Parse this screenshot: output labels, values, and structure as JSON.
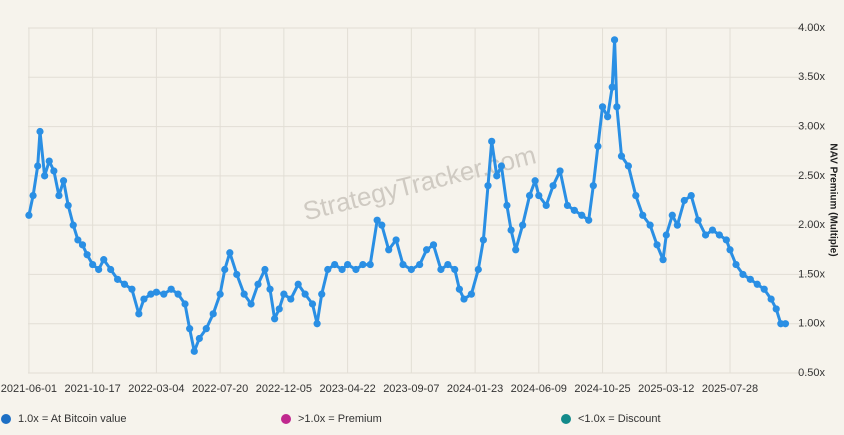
{
  "chart_data": {
    "type": "line",
    "watermark": "StrategyTracker.com",
    "y_axis_label": "NAV Premium (Multiple)",
    "x": [
      "2021-06-01",
      "2021-06-10",
      "2021-06-20",
      "2021-06-25",
      "2021-07-05",
      "2021-07-15",
      "2021-07-25",
      "2021-08-05",
      "2021-08-15",
      "2021-08-25",
      "2021-09-05",
      "2021-09-15",
      "2021-09-25",
      "2021-10-05",
      "2021-10-17",
      "2021-10-30",
      "2021-11-10",
      "2021-11-25",
      "2021-12-10",
      "2021-12-25",
      "2022-01-10",
      "2022-01-25",
      "2022-02-05",
      "2022-02-20",
      "2022-03-04",
      "2022-03-20",
      "2022-04-05",
      "2022-04-20",
      "2022-05-05",
      "2022-05-15",
      "2022-05-25",
      "2022-06-05",
      "2022-06-20",
      "2022-07-05",
      "2022-07-20",
      "2022-07-30",
      "2022-08-10",
      "2022-08-25",
      "2022-09-10",
      "2022-09-25",
      "2022-10-10",
      "2022-10-25",
      "2022-11-05",
      "2022-11-15",
      "2022-11-25",
      "2022-12-05",
      "2022-12-20",
      "2023-01-05",
      "2023-01-20",
      "2023-02-05",
      "2023-02-15",
      "2023-02-25",
      "2023-03-10",
      "2023-03-25",
      "2023-04-10",
      "2023-04-22",
      "2023-05-10",
      "2023-05-25",
      "2023-06-10",
      "2023-06-25",
      "2023-07-05",
      "2023-07-20",
      "2023-08-05",
      "2023-08-20",
      "2023-09-07",
      "2023-09-25",
      "2023-10-10",
      "2023-10-25",
      "2023-11-10",
      "2023-11-25",
      "2023-12-10",
      "2023-12-20",
      "2023-12-30",
      "2024-01-15",
      "2024-01-30",
      "2024-02-10",
      "2024-02-20",
      "2024-02-28",
      "2024-03-10",
      "2024-03-20",
      "2024-04-01",
      "2024-04-10",
      "2024-04-20",
      "2024-05-05",
      "2024-05-20",
      "2024-06-01",
      "2024-06-09",
      "2024-06-25",
      "2024-07-10",
      "2024-07-25",
      "2024-08-10",
      "2024-08-25",
      "2024-09-10",
      "2024-09-25",
      "2024-10-05",
      "2024-10-15",
      "2024-10-25",
      "2024-11-05",
      "2024-11-15",
      "2024-11-20",
      "2024-11-25",
      "2024-12-05",
      "2024-12-20",
      "2025-01-05",
      "2025-01-20",
      "2025-02-05",
      "2025-02-20",
      "2025-03-05",
      "2025-03-12",
      "2025-03-25",
      "2025-04-05",
      "2025-04-20",
      "2025-05-05",
      "2025-05-20",
      "2025-06-05",
      "2025-06-20",
      "2025-07-05",
      "2025-07-20",
      "2025-07-28",
      "2025-08-10",
      "2025-08-25",
      "2025-09-10",
      "2025-09-25",
      "2025-10-10",
      "2025-10-25",
      "2025-11-05",
      "2025-11-15",
      "2025-11-25"
    ],
    "series": [
      {
        "color": "#2a8fe4",
        "values": [
          2.1,
          2.3,
          2.6,
          2.95,
          2.5,
          2.65,
          2.55,
          2.3,
          2.45,
          2.2,
          2.0,
          1.85,
          1.8,
          1.7,
          1.6,
          1.55,
          1.65,
          1.55,
          1.45,
          1.4,
          1.35,
          1.1,
          1.25,
          1.3,
          1.32,
          1.3,
          1.35,
          1.3,
          1.2,
          0.95,
          0.72,
          0.85,
          0.95,
          1.1,
          1.3,
          1.55,
          1.72,
          1.5,
          1.3,
          1.2,
          1.4,
          1.55,
          1.35,
          1.05,
          1.15,
          1.3,
          1.25,
          1.4,
          1.3,
          1.2,
          1.0,
          1.3,
          1.55,
          1.6,
          1.55,
          1.6,
          1.55,
          1.6,
          1.6,
          2.05,
          2.0,
          1.75,
          1.85,
          1.6,
          1.55,
          1.6,
          1.75,
          1.8,
          1.55,
          1.6,
          1.55,
          1.35,
          1.25,
          1.3,
          1.55,
          1.85,
          2.4,
          2.85,
          2.5,
          2.6,
          2.2,
          1.95,
          1.75,
          2.0,
          2.3,
          2.45,
          2.3,
          2.2,
          2.4,
          2.55,
          2.2,
          2.15,
          2.1,
          2.05,
          2.4,
          2.8,
          3.2,
          3.1,
          3.4,
          3.88,
          3.2,
          2.7,
          2.6,
          2.3,
          2.1,
          2.0,
          1.8,
          1.65,
          1.9,
          2.1,
          2.0,
          2.25,
          2.3,
          2.05,
          1.9,
          1.95,
          1.9,
          1.85,
          1.75,
          1.6,
          1.5,
          1.45,
          1.4,
          1.35,
          1.25,
          1.15,
          1.0,
          1.0
        ]
      }
    ],
    "xlim": [
      "2021-05-30",
      "2026-01-28"
    ],
    "xticks": [
      "2021-06-01",
      "2021-10-17",
      "2022-03-04",
      "2022-07-20",
      "2022-12-05",
      "2023-04-22",
      "2023-09-07",
      "2024-01-23",
      "2024-06-09",
      "2024-10-25",
      "2025-03-12",
      "2025-07-28"
    ],
    "ylim": [
      0.5,
      4
    ],
    "yticks": [
      {
        "value": 0.5,
        "label": "0.50x"
      },
      {
        "value": 1,
        "label": "1.00x"
      },
      {
        "value": 1.5,
        "label": "1.50x"
      },
      {
        "value": 2,
        "label": "2.00x"
      },
      {
        "value": 2.5,
        "label": "2.50x"
      },
      {
        "value": 3,
        "label": "3.00x"
      },
      {
        "value": 3.5,
        "label": "3.50x"
      },
      {
        "value": 4,
        "label": "4.00x"
      }
    ],
    "grid": true,
    "legend": [
      {
        "label": "1.0x = At Bitcoin value",
        "color": "#1d6fc4"
      },
      {
        "label": ">1.0x = Premium",
        "color": "#c0288e"
      },
      {
        "label": "<1.0x = Discount",
        "color": "#138a8a"
      }
    ]
  }
}
